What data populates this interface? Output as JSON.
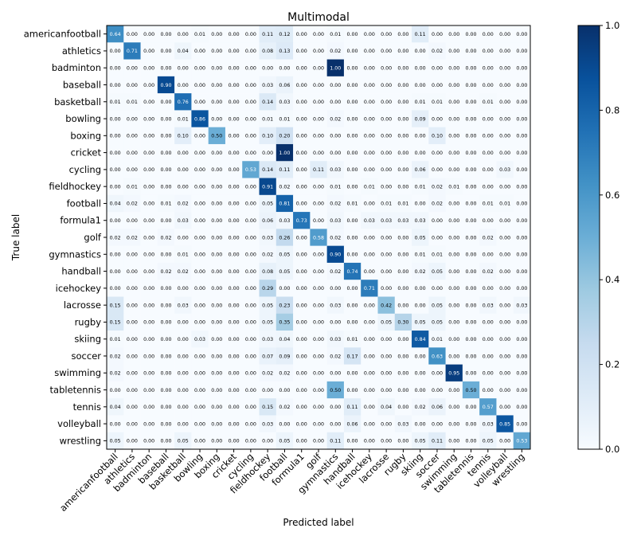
{
  "chart_data": {
    "type": "heatmap",
    "title": "Multimodal",
    "xlabel": "Predicted label",
    "ylabel": "True label",
    "colormap": "Blues",
    "colorbar": {
      "range": [
        0.0,
        1.0
      ],
      "ticks": [
        "0.0",
        "0.2",
        "0.4",
        "0.6",
        "0.8",
        "1.0"
      ]
    },
    "labels": [
      "americanfootball",
      "athletics",
      "badminton",
      "baseball",
      "basketball",
      "bowling",
      "boxing",
      "cricket",
      "cycling",
      "fieldhockey",
      "football",
      "formula1",
      "golf",
      "gymnastics",
      "handball",
      "icehockey",
      "lacrosse",
      "rugby",
      "skiing",
      "soccer",
      "swimming",
      "tabletennis",
      "tennis",
      "volleyball",
      "wrestling"
    ],
    "matrix": [
      [
        0.64,
        0,
        0,
        0,
        0,
        0.01,
        0,
        0,
        0,
        0.11,
        0.12,
        0,
        0,
        0.01,
        0,
        0,
        0,
        0,
        0.11,
        0,
        0,
        0,
        0,
        0,
        0
      ],
      [
        0,
        0.71,
        0,
        0,
        0.04,
        0,
        0,
        0,
        0,
        0.08,
        0.13,
        0,
        0,
        0.02,
        0,
        0,
        0,
        0,
        0,
        0.02,
        0,
        0,
        0,
        0,
        0
      ],
      [
        0,
        0,
        0,
        0,
        0,
        0,
        0,
        0,
        0,
        0,
        0,
        0,
        0,
        1.0,
        0,
        0,
        0,
        0,
        0,
        0,
        0,
        0,
        0,
        0,
        0
      ],
      [
        0,
        0,
        0,
        0.9,
        0,
        0,
        0,
        0,
        0,
        0.03,
        0.06,
        0,
        0,
        0,
        0,
        0,
        0,
        0,
        0,
        0,
        0,
        0,
        0,
        0,
        0
      ],
      [
        0.01,
        0.01,
        0,
        0,
        0.76,
        0,
        0,
        0,
        0,
        0.14,
        0.03,
        0,
        0,
        0,
        0,
        0,
        0,
        0,
        0.01,
        0.01,
        0,
        0,
        0.01,
        0,
        0
      ],
      [
        0,
        0,
        0,
        0,
        0.01,
        0.86,
        0,
        0,
        0,
        0.01,
        0.01,
        0,
        0,
        0.02,
        0,
        0,
        0,
        0,
        0.09,
        0,
        0,
        0,
        0,
        0,
        0
      ],
      [
        0,
        0,
        0,
        0,
        0.1,
        0,
        0.5,
        0,
        0,
        0.1,
        0.2,
        0,
        0,
        0,
        0,
        0,
        0,
        0,
        0,
        0.1,
        0,
        0,
        0,
        0,
        0
      ],
      [
        0,
        0,
        0,
        0,
        0,
        0,
        0,
        0,
        0,
        0,
        1.0,
        0,
        0,
        0,
        0,
        0,
        0,
        0,
        0,
        0,
        0,
        0,
        0,
        0,
        0
      ],
      [
        0,
        0,
        0,
        0,
        0,
        0,
        0,
        0,
        0.53,
        0.14,
        0.11,
        0,
        0.11,
        0.03,
        0,
        0,
        0,
        0,
        0.06,
        0,
        0,
        0,
        0,
        0.03,
        0
      ],
      [
        0,
        0.01,
        0,
        0,
        0,
        0,
        0,
        0,
        0,
        0.91,
        0.02,
        0,
        0,
        0.01,
        0,
        0.01,
        0,
        0,
        0.01,
        0.02,
        0.01,
        0,
        0,
        0,
        0
      ],
      [
        0.04,
        0.02,
        0,
        0.01,
        0.02,
        0,
        0,
        0,
        0,
        0.05,
        0.81,
        0,
        0,
        0.02,
        0.01,
        0,
        0.01,
        0.01,
        0,
        0.02,
        0,
        0,
        0.01,
        0.01,
        0
      ],
      [
        0,
        0,
        0,
        0,
        0.03,
        0,
        0,
        0,
        0,
        0.06,
        0.03,
        0.73,
        0,
        0.03,
        0,
        0.03,
        0.03,
        0.03,
        0.03,
        0,
        0,
        0,
        0,
        0,
        0
      ],
      [
        0.02,
        0.02,
        0,
        0.02,
        0,
        0,
        0,
        0,
        0,
        0.03,
        0.26,
        0,
        0.58,
        0.02,
        0,
        0,
        0,
        0,
        0.05,
        0,
        0,
        0,
        0.02,
        0,
        0
      ],
      [
        0,
        0,
        0,
        0,
        0.01,
        0,
        0,
        0,
        0,
        0.02,
        0.05,
        0,
        0,
        0.9,
        0,
        0,
        0,
        0,
        0.01,
        0.01,
        0,
        0,
        0,
        0,
        0
      ],
      [
        0,
        0,
        0,
        0.02,
        0.02,
        0,
        0,
        0,
        0,
        0.08,
        0.05,
        0,
        0,
        0.02,
        0.74,
        0,
        0,
        0,
        0.02,
        0.05,
        0,
        0,
        0.02,
        0,
        0
      ],
      [
        0,
        0,
        0,
        0,
        0,
        0,
        0,
        0,
        0,
        0.29,
        0,
        0,
        0,
        0,
        0,
        0.71,
        0,
        0,
        0,
        0,
        0,
        0,
        0,
        0,
        0
      ],
      [
        0.15,
        0,
        0,
        0,
        0.03,
        0,
        0,
        0,
        0,
        0.05,
        0.23,
        0,
        0,
        0.03,
        0,
        0,
        0.42,
        0,
        0,
        0.05,
        0,
        0,
        0.03,
        0,
        0.03
      ],
      [
        0.15,
        0,
        0,
        0,
        0,
        0,
        0,
        0,
        0,
        0.05,
        0.35,
        0,
        0,
        0,
        0,
        0,
        0.05,
        0.3,
        0.05,
        0.05,
        0,
        0,
        0,
        0,
        0
      ],
      [
        0.01,
        0,
        0,
        0,
        0,
        0.03,
        0,
        0,
        0,
        0.03,
        0.04,
        0,
        0,
        0.03,
        0.01,
        0,
        0,
        0,
        0.84,
        0.01,
        0,
        0,
        0,
        0,
        0
      ],
      [
        0.02,
        0,
        0,
        0,
        0,
        0,
        0,
        0,
        0,
        0.07,
        0.09,
        0,
        0,
        0.02,
        0.17,
        0,
        0,
        0,
        0,
        0.63,
        0,
        0,
        0,
        0,
        0
      ],
      [
        0.02,
        0,
        0,
        0,
        0,
        0,
        0,
        0,
        0,
        0.02,
        0.02,
        0,
        0,
        0,
        0,
        0,
        0,
        0,
        0,
        0,
        0.95,
        0,
        0,
        0,
        0
      ],
      [
        0,
        0,
        0,
        0,
        0,
        0,
        0,
        0,
        0,
        0,
        0,
        0,
        0,
        0.5,
        0,
        0,
        0,
        0,
        0,
        0,
        0,
        0.5,
        0,
        0,
        0
      ],
      [
        0.04,
        0,
        0,
        0,
        0,
        0,
        0,
        0,
        0,
        0.15,
        0.02,
        0,
        0,
        0,
        0.11,
        0,
        0.04,
        0,
        0.02,
        0.06,
        0,
        0,
        0.57,
        0,
        0
      ],
      [
        0,
        0,
        0,
        0,
        0,
        0,
        0,
        0,
        0,
        0.03,
        0,
        0,
        0,
        0,
        0.06,
        0,
        0,
        0.03,
        0,
        0,
        0,
        0,
        0.03,
        0.85,
        0
      ],
      [
        0.05,
        0,
        0,
        0,
        0.05,
        0,
        0,
        0,
        0,
        0,
        0.05,
        0,
        0,
        0.11,
        0,
        0,
        0,
        0,
        0.05,
        0.11,
        0,
        0,
        0.05,
        0,
        0.53
      ]
    ],
    "grid": false
  }
}
